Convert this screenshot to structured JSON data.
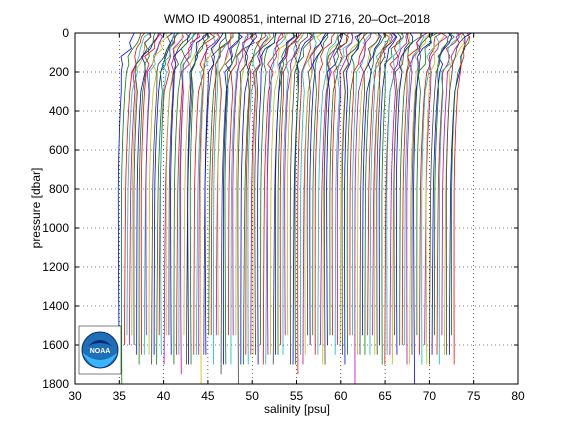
{
  "chart_data": {
    "type": "line",
    "title": "WMO ID 4900851, internal ID 2716, 20–Oct–2018",
    "xlabel": "salinity [psu]",
    "ylabel": "pressure [dbar]",
    "xlim": [
      30,
      80
    ],
    "ylim": [
      1800,
      0
    ],
    "y_reversed": true,
    "grid": "dotted",
    "xticks": [
      "30",
      "35",
      "40",
      "45",
      "50",
      "55",
      "60",
      "65",
      "70",
      "75",
      "80"
    ],
    "yticks": [
      "0",
      "200",
      "400",
      "600",
      "800",
      "1000",
      "1200",
      "1400",
      "1600",
      "1800"
    ],
    "profiles": {
      "description": "Waterfall of salinity profiles, each successive profile offset slightly in salinity",
      "count": 136,
      "first_offset_left": 35.0,
      "last_offset_left": 72.8,
      "surface_salinity_excess": 2.0,
      "colors": [
        "#0000ff",
        "#008000",
        "#ff0000",
        "#00bfbf",
        "#bf00bf",
        "#bfbf00",
        "#404040"
      ]
    }
  },
  "logo": {
    "name": "noaa-logo",
    "text": "NOAA"
  }
}
